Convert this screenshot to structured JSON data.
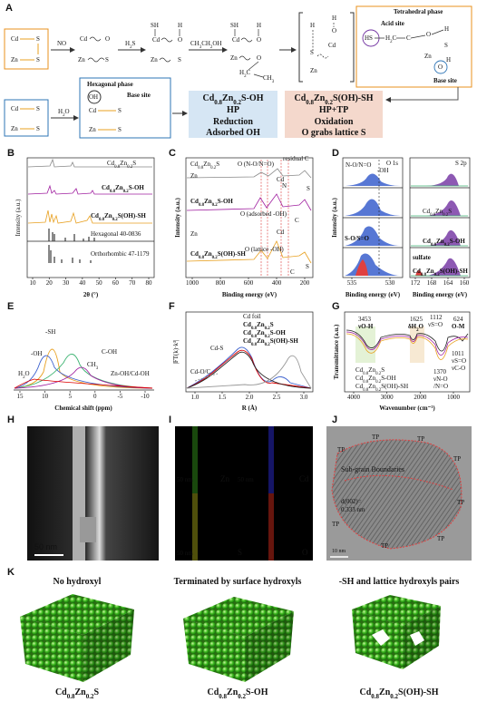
{
  "A": {
    "label": "A",
    "s1": [
      "Cd",
      "S",
      "Zn",
      "S"
    ],
    "no": "NO",
    "s2": [
      "Cd",
      "O",
      "Zn",
      "S"
    ],
    "h2s": "H2S",
    "s3": [
      "SH",
      "H",
      "Cd",
      "O",
      "Zn",
      "S"
    ],
    "etoh": "CH3CH2OH",
    "s4": [
      "SH",
      "H",
      "Cd",
      "O",
      "Zn",
      "O",
      "H2C",
      "CH3"
    ],
    "s5": [
      "H",
      "O",
      "H",
      "Cd",
      "S",
      "Zn"
    ],
    "tetrahedral_phase": "Tetrahedral phase",
    "acid_site": "Acid site",
    "tetra_atoms": [
      "HS",
      "H2C",
      "C",
      "O",
      "H",
      "S",
      "Zn",
      "O",
      "H"
    ],
    "base_site_tetra": "Base site",
    "s6": [
      "Cd",
      "S",
      "Zn",
      "S"
    ],
    "h2o": "H2O",
    "hexagonal_phase": "Hexagonal phase",
    "base_site_hex": "Base site",
    "s7": [
      "OH",
      "Cd",
      "S",
      "Zn",
      "S"
    ],
    "box_1": [
      "Cd0.8Zn0.2S-OH",
      "HP",
      "Reduction",
      "Adsorbed OH"
    ],
    "box_2": [
      "Cd0.8Zn0.2S(OH)-SH",
      "HP+TP",
      "Oxidation",
      "O grabs lattice S"
    ]
  },
  "B": {
    "label": "B",
    "samples": [
      "Cd0.8Zn0.2S",
      "Cd0.8Zn0.2S-OH",
      "Cd0.8Zn0.2S(OH)-SH"
    ],
    "references": [
      "Hexagonal 40-0836",
      "Orthorhombic 47-1179"
    ],
    "y_label": "Intensity (a.u.)",
    "x_label": "2θ (°)",
    "x_ticks": [
      "10",
      "20",
      "30",
      "40",
      "50",
      "60",
      "70",
      "80"
    ]
  },
  "C": {
    "label": "C",
    "samples": [
      "Cd0.8Zn0.2S",
      "Cd0.8Zn0.2S-OH",
      "Cd0.8Zn0.2S(OH)-SH"
    ],
    "peaks": [
      "O (N-O/N=O)",
      "residual C",
      "Cd",
      "N",
      "Zn",
      "O (adsorbed -OH)",
      "Zn",
      "O (lattice -OH)",
      "Cd",
      "S",
      "C",
      "S",
      "C"
    ],
    "y_label": "Intensity (a.u.)",
    "x_label": "Binding energy (eV)",
    "x_ticks": [
      "1000",
      "800",
      "600",
      "400",
      "200"
    ]
  },
  "D": {
    "label": "D",
    "o1s": "O 1s",
    "s2p": "S 2p",
    "o_peaks": [
      "N-O/N=O",
      "-OH",
      "S-O/S=O"
    ],
    "sulfate": "sulfate",
    "samples": [
      "Cd0.8Zn0.2S",
      "Cd0.8Zn0.2S-OH",
      "Cd0.8Zn0.2S(OH)-SH"
    ],
    "y_label": "Intensity (a.u.)",
    "x_label": "Binding energy (eV)",
    "x_ticks_left": [
      "535",
      "530"
    ],
    "x_ticks_right": [
      "172",
      "168",
      "164",
      "160"
    ]
  },
  "E": {
    "label": "E",
    "peaks": [
      "-SH",
      "-OH",
      "H2O",
      "C-OH",
      "CH3",
      "Zn-OH/Cd-OH"
    ],
    "x_label": "Chemical shift (ppm)",
    "x_ticks": [
      "15",
      "10",
      "5",
      "0",
      "-5",
      "-10"
    ]
  },
  "F": {
    "label": "F",
    "legend": [
      "Cd foil",
      "Cd0.8Zn0.2S",
      "Cd0.8Zn0.2S-OH",
      "Cd0.8Zn0.2S(OH)-SH"
    ],
    "peaks": [
      "Cd-S",
      "Cd-O/C"
    ],
    "y_label": "|FT(k)·k³|",
    "x_label": "R (Å)",
    "x_ticks": [
      "1.0",
      "1.5",
      "2.0",
      "2.5",
      "3.0"
    ]
  },
  "G": {
    "label": "G",
    "bands": [
      "3453",
      "νO-H",
      "1625",
      "δH2O",
      "1112",
      "νS=O",
      "624",
      "O-M",
      "1011",
      "νS=O",
      "νC-O",
      "1370",
      "νN-O",
      "/N=O"
    ],
    "legend": [
      "Cd0.8Zn0.2S",
      "Cd0.8Zn0.2S-OH",
      "Cd0.8Zn0.2S(OH)-SH"
    ],
    "y_label": "Transmittance (a.u.)",
    "x_label": "Wavenumber (cm⁻¹)",
    "x_ticks": [
      "4000",
      "3000",
      "2000",
      "1000"
    ]
  },
  "H": {
    "label": "H",
    "scale": "50 nm"
  },
  "I": {
    "label": "I",
    "maps": [
      [
        "50 nm",
        "Zn"
      ],
      [
        "50 nm",
        "Cd"
      ],
      [
        "",
        "S"
      ],
      [
        "50 nm",
        "O"
      ]
    ]
  },
  "J": {
    "label": "J",
    "boundary": "Sub-grain Boundaries",
    "d_spacing": [
      "d(002)=",
      "0.333 nm"
    ],
    "tp": [
      "TP",
      "TP",
      "TP",
      "TP",
      "TP",
      "TP",
      "TP",
      "TP"
    ],
    "scale": "10 nm"
  },
  "K": {
    "label": "K",
    "headings": [
      "No hydroxyl",
      "Terminated by surface hydroxyls",
      "-SH and lattice hydroxyls pairs"
    ],
    "formulas": [
      "Cd0.8Zn0.2S",
      "Cd0.8Zn0.2S-OH",
      "Cd0.8Zn0.2S(OH)-SH"
    ]
  }
}
